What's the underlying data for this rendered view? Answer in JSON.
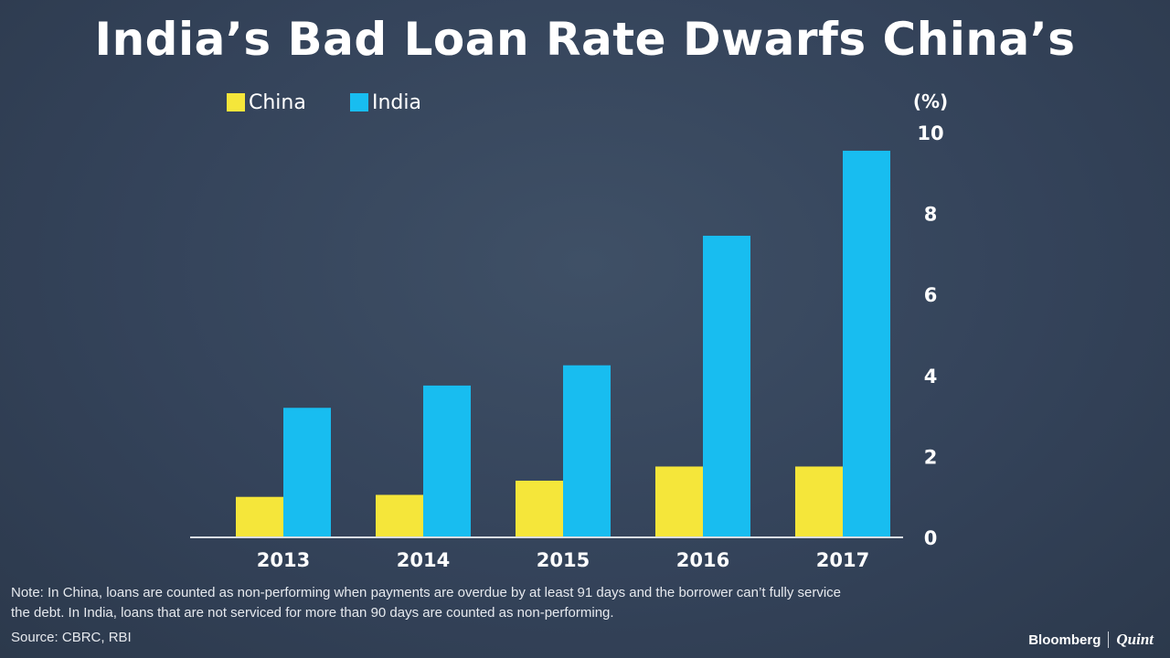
{
  "title": "India’s Bad Loan Rate Dwarfs China’s",
  "colors": {
    "china": "#f5e63a",
    "india": "#18bdf0",
    "axis": "#d9dde3",
    "text": "#ffffff"
  },
  "chart_data": {
    "type": "bar",
    "categories": [
      "2013",
      "2014",
      "2015",
      "2016",
      "2017"
    ],
    "series": [
      {
        "name": "China",
        "values": [
          1.0,
          1.05,
          1.4,
          1.75,
          1.75
        ]
      },
      {
        "name": "India",
        "values": [
          3.2,
          3.75,
          4.25,
          7.45,
          9.55
        ]
      }
    ],
    "y_unit": "(%)",
    "ylim": [
      0,
      10
    ],
    "yticks": [
      0,
      2,
      4,
      6,
      8,
      10
    ],
    "y_axis_position": "right",
    "legend_position": "top-left",
    "grid": false
  },
  "footer": {
    "note_line1": "Note: In China, loans are counted as non-performing when payments are overdue by at least 91 days and the borrower can’t fully service",
    "note_line2": "the debt. In India, loans that are not serviced for more than 90 days are counted as non-performing.",
    "source": "Source: CBRC, RBI",
    "brand_primary": "Bloomberg",
    "brand_secondary": "Quint"
  }
}
